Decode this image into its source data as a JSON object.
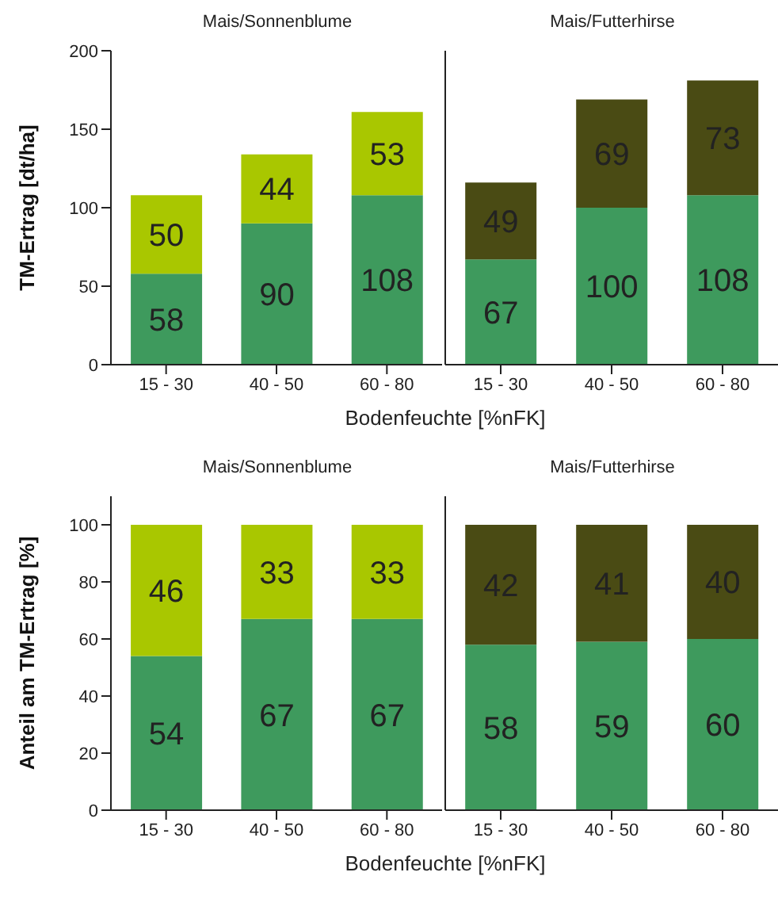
{
  "chart_data": [
    {
      "type": "bar",
      "title": "Mais/Sonnenblume",
      "ylabel": "TM-Ertrag [dt/ha]",
      "xlabel": "Bodenfeuchte [%nFK]",
      "categories": [
        "15 - 30",
        "40 - 50",
        "60 - 80"
      ],
      "stacked": true,
      "data_labels": true,
      "ylim": [
        0,
        200
      ],
      "yticks": [
        0,
        50,
        100,
        150,
        200
      ],
      "series": [
        {
          "color": "#3e9a5d",
          "values": [
            58,
            90,
            108
          ]
        },
        {
          "color": "#a9c700",
          "values": [
            50,
            44,
            53
          ]
        }
      ]
    },
    {
      "type": "bar",
      "title": "Mais/Futterhirse",
      "categories": [
        "15 - 30",
        "40 - 50",
        "60 - 80"
      ],
      "stacked": true,
      "data_labels": true,
      "ylim": [
        0,
        200
      ],
      "yticks": [
        0,
        50,
        100,
        150,
        200
      ],
      "tick_labels": "x",
      "series": [
        {
          "color": "#3e9a5d",
          "values": [
            67,
            100,
            108
          ]
        },
        {
          "color": "#4a4b14",
          "values": [
            49,
            69,
            73
          ]
        }
      ]
    },
    {
      "type": "bar",
      "title": "Mais/Sonnenblume",
      "ylabel": "Anteil am TM-Ertrag [%]",
      "xlabel": "Bodenfeuchte [%nFK]",
      "categories": [
        "15 - 30",
        "40 - 50",
        "60 - 80"
      ],
      "stacked": true,
      "data_labels": true,
      "ylim": [
        0,
        110
      ],
      "yticks": [
        0,
        20,
        40,
        60,
        80,
        100
      ],
      "series": [
        {
          "color": "#3e9a5d",
          "values": [
            54,
            67,
            67
          ]
        },
        {
          "color": "#a9c700",
          "values": [
            46,
            33,
            33
          ]
        }
      ]
    },
    {
      "type": "bar",
      "title": "Mais/Futterhirse",
      "categories": [
        "15 - 30",
        "40 - 50",
        "60 - 80"
      ],
      "stacked": true,
      "data_labels": true,
      "ylim": [
        0,
        110
      ],
      "yticks": [
        0,
        20,
        40,
        60,
        80,
        100
      ],
      "tick_labels": "x",
      "series": [
        {
          "color": "#3e9a5d",
          "values": [
            58,
            59,
            60
          ]
        },
        {
          "color": "#4a4b14",
          "values": [
            42,
            41,
            40
          ]
        }
      ]
    }
  ]
}
